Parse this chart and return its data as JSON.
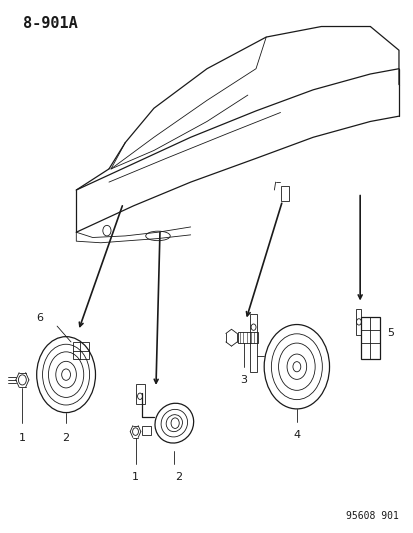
{
  "diagram_id": "8-901A",
  "part_number": "95608 901",
  "background_color": "#ffffff",
  "line_color": "#1a1a1a",
  "text_color": "#1a1a1a",
  "figsize": [
    4.14,
    5.33
  ],
  "dpi": 100,
  "title": "8-901A",
  "title_fontsize": 11,
  "part_num_fontsize": 7,
  "label_fontsize": 8
}
